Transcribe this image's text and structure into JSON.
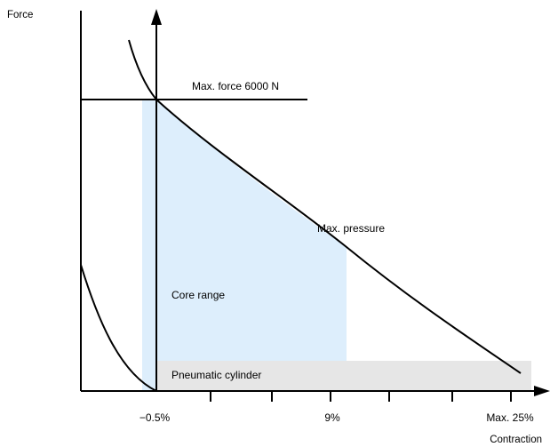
{
  "diagram": {
    "y_axis_label": "Force",
    "x_axis_label": "Contraction",
    "ticks": {
      "neg_half": "−0.5%",
      "nine": "9%",
      "max": "Max. 25%"
    },
    "labels": {
      "max_force": "Max. force 6000 N",
      "max_pressure": "Max. pressure",
      "core_range": "Core range",
      "pneumatic_cylinder": "Pneumatic cylinder"
    },
    "colors": {
      "core_range_fill": "#ddeefc",
      "cylinder_fill": "#e6e6e6",
      "line": "#000000"
    }
  }
}
